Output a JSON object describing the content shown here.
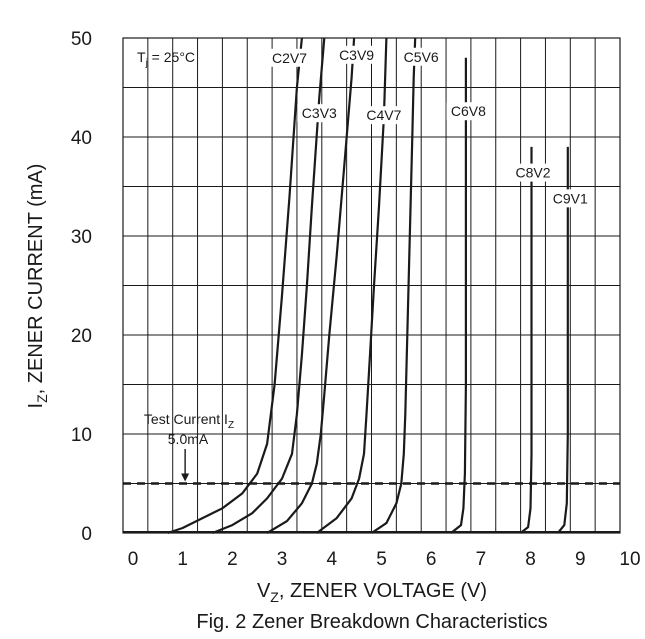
{
  "chart_data": {
    "type": "line",
    "title": "",
    "caption": "Fig. 2  Zener Breakdown Characteristics",
    "xlabel": {
      "main": "V",
      "sub": "Z",
      "rest": ", ZENER VOLTAGE (V)"
    },
    "ylabel": {
      "main": "I",
      "sub": "Z",
      "rest": ", ZENER CURRENT (mA)"
    },
    "xlim": [
      0,
      10
    ],
    "ylim": [
      0,
      50
    ],
    "x_ticks": [
      "0",
      "1",
      "2",
      "3",
      "4",
      "5",
      "6",
      "7",
      "8",
      "9",
      "10"
    ],
    "y_ticks": [
      "0",
      "10",
      "20",
      "30",
      "40",
      "50"
    ],
    "grid": true,
    "condition": {
      "main": "T",
      "sub": "j",
      "rest": " = 25°C"
    },
    "test_current": {
      "line1_main": "Test Current I",
      "line1_sub": "Z",
      "line2": "5.0mA",
      "value_mA": 5.0,
      "arrow_x": 1.25,
      "style": "dashed"
    },
    "series": [
      {
        "name": "C2V7",
        "points": [
          [
            0.9,
            0
          ],
          [
            1.2,
            0.5
          ],
          [
            1.6,
            1.5
          ],
          [
            2.0,
            2.5
          ],
          [
            2.4,
            4
          ],
          [
            2.7,
            6
          ],
          [
            2.9,
            9
          ],
          [
            3.05,
            15
          ],
          [
            3.2,
            24
          ],
          [
            3.35,
            34
          ],
          [
            3.5,
            45
          ],
          [
            3.6,
            50
          ]
        ]
      },
      {
        "name": "C3V3",
        "points": [
          [
            1.8,
            0
          ],
          [
            2.2,
            0.8
          ],
          [
            2.6,
            2
          ],
          [
            2.9,
            3.5
          ],
          [
            3.2,
            5.5
          ],
          [
            3.4,
            8
          ],
          [
            3.5,
            12
          ],
          [
            3.6,
            18
          ],
          [
            3.7,
            25
          ],
          [
            3.8,
            33
          ],
          [
            3.95,
            44
          ],
          [
            4.05,
            50
          ]
        ]
      },
      {
        "name": "C3V9",
        "points": [
          [
            2.9,
            0
          ],
          [
            3.3,
            1.2
          ],
          [
            3.6,
            3
          ],
          [
            3.8,
            5
          ],
          [
            3.9,
            7
          ],
          [
            3.98,
            10
          ],
          [
            4.05,
            14
          ],
          [
            4.15,
            20
          ],
          [
            4.3,
            28
          ],
          [
            4.45,
            37
          ],
          [
            4.6,
            46
          ],
          [
            4.65,
            50
          ]
        ]
      },
      {
        "name": "C4V7",
        "points": [
          [
            3.9,
            0
          ],
          [
            4.3,
            1.5
          ],
          [
            4.6,
            3.5
          ],
          [
            4.75,
            5.5
          ],
          [
            4.85,
            8
          ],
          [
            4.9,
            12
          ],
          [
            4.97,
            18
          ],
          [
            5.05,
            25
          ],
          [
            5.15,
            33
          ],
          [
            5.25,
            42
          ],
          [
            5.3,
            50
          ]
        ]
      },
      {
        "name": "C5V6",
        "points": [
          [
            5.0,
            0
          ],
          [
            5.3,
            1
          ],
          [
            5.5,
            3
          ],
          [
            5.6,
            5
          ],
          [
            5.65,
            8
          ],
          [
            5.68,
            12
          ],
          [
            5.72,
            20
          ],
          [
            5.77,
            30
          ],
          [
            5.82,
            40
          ],
          [
            5.85,
            46
          ],
          [
            5.88,
            50
          ]
        ]
      },
      {
        "name": "C6V8",
        "points": [
          [
            6.6,
            0
          ],
          [
            6.8,
            0.8
          ],
          [
            6.85,
            2.5
          ],
          [
            6.88,
            6
          ],
          [
            6.9,
            15
          ],
          [
            6.9,
            30
          ],
          [
            6.9,
            48
          ]
        ]
      },
      {
        "name": "C8V2",
        "points": [
          [
            8.0,
            0
          ],
          [
            8.15,
            0.6
          ],
          [
            8.2,
            2.5
          ],
          [
            8.22,
            8
          ],
          [
            8.22,
            20
          ],
          [
            8.22,
            39
          ]
        ]
      },
      {
        "name": "C9V1",
        "points": [
          [
            8.75,
            0
          ],
          [
            8.88,
            0.8
          ],
          [
            8.93,
            3
          ],
          [
            8.95,
            10
          ],
          [
            8.95,
            25
          ],
          [
            8.95,
            39
          ]
        ]
      }
    ],
    "series_labels": [
      {
        "name": "C2V7",
        "x": 3.35,
        "y": 47.6
      },
      {
        "name": "C3V3",
        "x": 3.95,
        "y": 42.0
      },
      {
        "name": "C3V9",
        "x": 4.7,
        "y": 47.9
      },
      {
        "name": "C4V7",
        "x": 5.25,
        "y": 41.8
      },
      {
        "name": "C5V6",
        "x": 6.0,
        "y": 47.7
      },
      {
        "name": "C6V8",
        "x": 6.95,
        "y": 42.2
      },
      {
        "name": "C8V2",
        "x": 8.25,
        "y": 36.0
      },
      {
        "name": "C9V1",
        "x": 9.0,
        "y": 33.4
      }
    ]
  }
}
